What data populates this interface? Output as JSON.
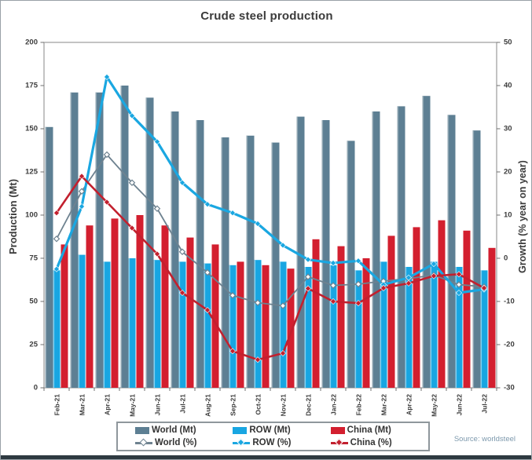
{
  "source_note": "Source: worldsteel",
  "colors": {
    "world_bar": "#5d7f93",
    "world_bar_edge": "#8fa6b2",
    "row_bar": "#18a6e2",
    "row_bar_edge": "#82d0f1",
    "china_bar": "#d31f2f",
    "world_line": "#6e8290",
    "row_line": "#1aa7e1",
    "china_line": "#c2202e",
    "text": "#3c3c3c",
    "axis": "#9b9b9b",
    "tick": "#6f6f6f",
    "legend_border": "#8f979c",
    "source_text": "#7d99ad"
  },
  "chart_data": {
    "type": "bar+line",
    "title": "Crude steel production",
    "left_axis": {
      "label": "Production (Mt)",
      "min": 0,
      "max": 200,
      "tick_step": 25,
      "ticks": [
        0,
        25,
        50,
        75,
        100,
        125,
        150,
        175,
        200
      ]
    },
    "right_axis": {
      "label": "Growth (% year on year)",
      "min": -30,
      "max": 50,
      "tick_step": 10,
      "ticks": [
        -30,
        -20,
        -10,
        0,
        10,
        20,
        30,
        40,
        50
      ]
    },
    "grid": false,
    "legend_position": "bottom",
    "categories": [
      "Feb-21",
      "Mar-21",
      "Apr-21",
      "May-21",
      "Jun-21",
      "Jul-21",
      "Aug-21",
      "Sep-21",
      "Oct-21",
      "Nov-21",
      "Dec-21",
      "Jan-22",
      "Feb-22",
      "Mar-22",
      "Apr-22",
      "May-22",
      "Jun-22",
      "Jul-22"
    ],
    "bar_series": [
      {
        "name": "World (Mt)",
        "color_key": "world_bar",
        "edge_key": "world_bar_edge",
        "values": [
          151,
          171,
          171,
          175,
          168,
          160,
          155,
          145,
          146,
          142,
          157,
          155,
          143,
          160,
          163,
          169,
          158,
          149
        ]
      },
      {
        "name": "ROW (Mt)",
        "color_key": "row_bar",
        "edge_key": "row_bar_edge",
        "values": [
          68,
          77,
          73,
          75,
          74,
          73,
          72,
          71,
          74,
          73,
          70,
          71,
          68,
          73,
          70,
          73,
          70,
          68
        ]
      },
      {
        "name": "China (Mt)",
        "color_key": "china_bar",
        "edge_key": null,
        "values": [
          83,
          94,
          98,
          100,
          94,
          87,
          83,
          73,
          71,
          69,
          86,
          82,
          75,
          88,
          93,
          97,
          91,
          81
        ]
      }
    ],
    "line_series": [
      {
        "name": "World (%)",
        "color_key": "world_line",
        "marker": "open-diamond",
        "width": 1.8,
        "values": [
          4.5,
          15.5,
          24,
          17.5,
          11.5,
          1.5,
          -3.3,
          -8.6,
          -10.3,
          -11,
          -4.3,
          -6.3,
          -6,
          -5.3,
          -4.7,
          -3.9,
          -6.1,
          -6.6
        ]
      },
      {
        "name": "ROW (%)",
        "color_key": "row_line",
        "marker": "solid-diamond",
        "width": 3.2,
        "values": [
          -2.5,
          12,
          42,
          33,
          27,
          17.5,
          12.5,
          10.5,
          8,
          3,
          -0.3,
          -1.1,
          -0.6,
          -6.1,
          -4.5,
          -1.3,
          -8,
          -7.2
        ]
      },
      {
        "name": "China (%)",
        "color_key": "china_line",
        "marker": "solid-diamond",
        "width": 2.6,
        "values": [
          10.5,
          19,
          13,
          7,
          1,
          -8,
          -12,
          -21.5,
          -23.5,
          -22,
          -7,
          -10,
          -10.4,
          -6.9,
          -5.8,
          -4.1,
          -3.7,
          -6.9
        ]
      }
    ]
  }
}
